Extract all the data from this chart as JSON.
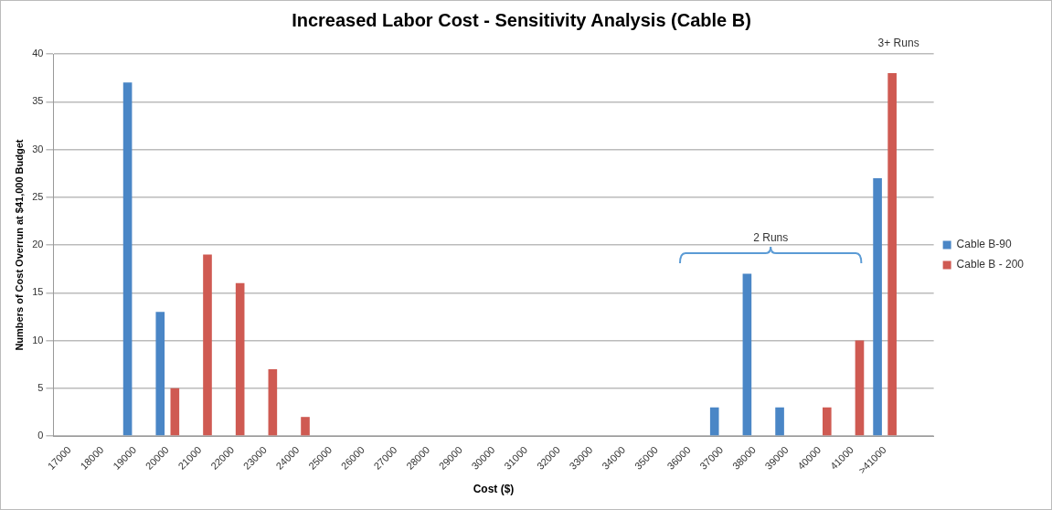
{
  "chart_data": {
    "type": "bar",
    "title": "Increased Labor Cost - Sensitivity Analysis (Cable B)",
    "xlabel": "Cost ($)",
    "ylabel": "Numbers of Cost Overrun at $41,000 Budget",
    "categories": [
      "17000",
      "18000",
      "19000",
      "20000",
      "21000",
      "22000",
      "23000",
      "24000",
      "25000",
      "26000",
      "27000",
      "28000",
      "29000",
      "30000",
      "31000",
      "32000",
      "33000",
      "34000",
      "35000",
      "36000",
      "37000",
      "38000",
      "39000",
      "40000",
      "41000",
      ">41000",
      null
    ],
    "series": [
      {
        "name": "Cable B-90",
        "color": "#4a86c6",
        "values": [
          0,
          0,
          37,
          13,
          0,
          0,
          0,
          0,
          0,
          0,
          0,
          0,
          0,
          0,
          0,
          0,
          0,
          0,
          0,
          0,
          3,
          17,
          3,
          0,
          0,
          27,
          0
        ]
      },
      {
        "name": "Cable B - 200",
        "color": "#cf5a52",
        "values": [
          0,
          0,
          0,
          5,
          19,
          16,
          7,
          2,
          0,
          0,
          0,
          0,
          0,
          0,
          0,
          0,
          0,
          0,
          0,
          0,
          0,
          0,
          0,
          3,
          10,
          38,
          0
        ]
      }
    ],
    "ylim": [
      0,
      40
    ],
    "yticks": [
      0,
      5,
      10,
      15,
      20,
      25,
      30,
      35,
      40
    ],
    "grid": "y",
    "legend": "right",
    "annotations": [
      "2 Runs",
      "3+ Runs"
    ]
  }
}
